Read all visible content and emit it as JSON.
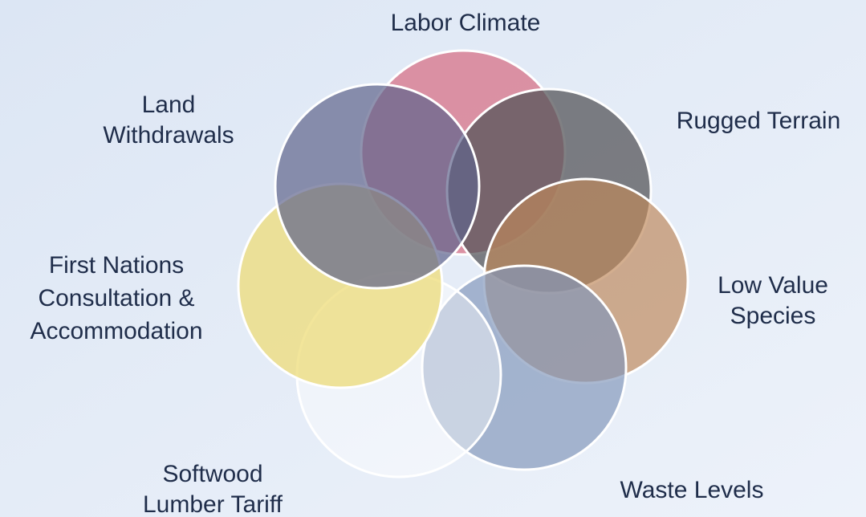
{
  "nodes": [
    {
      "lines": [
        "Labor Climate"
      ]
    },
    {
      "lines": [
        "Rugged Terrain"
      ]
    },
    {
      "lines": [
        "Low Value",
        "Species"
      ]
    },
    {
      "lines": [
        "Waste Levels"
      ]
    },
    {
      "lines": [
        "Softwood",
        "Lumber Tariff"
      ]
    },
    {
      "lines": [
        "First Nations",
        "Consultation &",
        "Accommodation"
      ]
    },
    {
      "lines": [
        "Land",
        "Withdrawals"
      ]
    }
  ]
}
